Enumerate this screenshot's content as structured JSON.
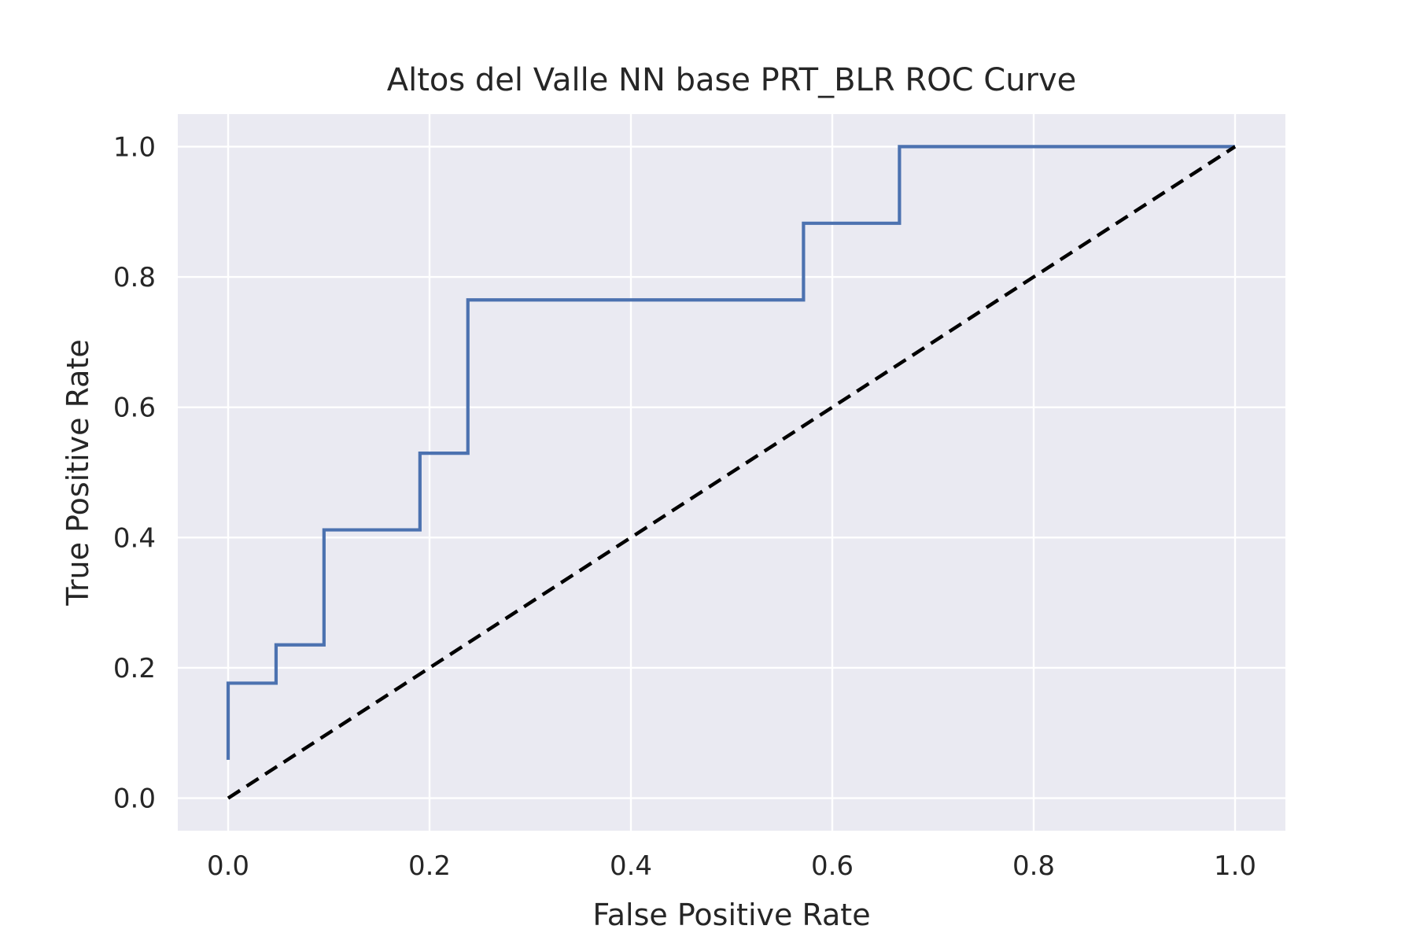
{
  "chart_data": {
    "type": "line",
    "title": "Altos del Valle NN base PRT_BLR ROC Curve",
    "xlabel": "False Positive Rate",
    "ylabel": "True Positive Rate",
    "xlim": [
      -0.05,
      1.05
    ],
    "ylim": [
      -0.05,
      1.05
    ],
    "xticks": [
      0.0,
      0.2,
      0.4,
      0.6,
      0.8,
      1.0
    ],
    "yticks": [
      0.0,
      0.2,
      0.4,
      0.6,
      0.8,
      1.0
    ],
    "xtick_labels": [
      "0.0",
      "0.2",
      "0.4",
      "0.6",
      "0.8",
      "1.0"
    ],
    "ytick_labels": [
      "0.0",
      "0.2",
      "0.4",
      "0.6",
      "0.8",
      "1.0"
    ],
    "grid": true,
    "legend": false,
    "series": [
      {
        "style": "solid",
        "color": "#4c72b0",
        "x": [
          0.0,
          0.0,
          0.0476,
          0.0476,
          0.0952,
          0.0952,
          0.1905,
          0.1905,
          0.2381,
          0.2381,
          0.5714,
          0.5714,
          0.6667,
          0.6667,
          1.0
        ],
        "y": [
          0.0588,
          0.1765,
          0.1765,
          0.2353,
          0.2353,
          0.4118,
          0.4118,
          0.5294,
          0.5294,
          0.7647,
          0.7647,
          0.8824,
          0.8824,
          1.0,
          1.0
        ]
      },
      {
        "style": "dashed",
        "color": "#000000",
        "x": [
          0.0,
          1.0
        ],
        "y": [
          0.0,
          1.0
        ]
      }
    ],
    "colors": {
      "plot_background": "#eaeaf2",
      "grid": "#ffffff",
      "text": "#262626"
    }
  }
}
